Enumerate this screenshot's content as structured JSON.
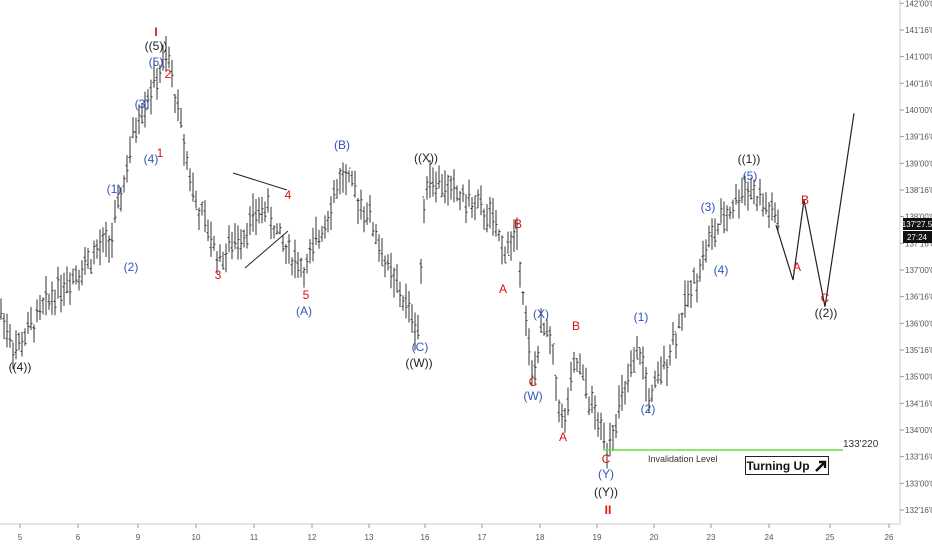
{
  "chart_data": {
    "type": "candlestick",
    "title": "",
    "xlabel": "",
    "ylabel": "",
    "x_ticks": [
      "5",
      "6",
      "9",
      "10",
      "11",
      "12",
      "13",
      "16",
      "17",
      "18",
      "19",
      "20",
      "23",
      "24",
      "25",
      "26"
    ],
    "y_ticks": [
      "132'16'0",
      "133'00'0",
      "133'16'0",
      "134'00'0",
      "134'16'0",
      "135'00'0",
      "135'16'0",
      "136'00'0",
      "136'16'0",
      "137'00'0",
      "137'16'0",
      "138'00'0",
      "138'16'0",
      "139'00'0",
      "139'16'0",
      "140'00'0",
      "140'16'0",
      "141'00'0",
      "141'16'0",
      "142'00'0"
    ],
    "ylim": [
      "132'08",
      "142'00"
    ],
    "price_badges": [
      "137'27.5",
      "27:24"
    ],
    "invalidation": {
      "label": "Invalidation Level",
      "value": "133'220",
      "color": "#66dd44"
    },
    "path": [
      [
        "day5",
        136.25
      ],
      [
        "day5",
        135.5
      ],
      [
        "day6",
        136.6
      ],
      [
        "day9",
        137.6
      ],
      [
        "day9",
        139.9
      ],
      [
        "day9",
        141.0
      ],
      [
        "day10",
        138.3
      ],
      [
        "day10",
        137.2
      ],
      [
        "day11",
        138.2
      ],
      [
        "day11",
        137.4
      ],
      [
        "day12",
        137.0
      ],
      [
        "day12",
        138.8
      ],
      [
        "day13",
        138.0
      ],
      [
        "day13",
        137.0
      ],
      [
        "day16",
        135.9
      ],
      [
        "day16",
        138.8
      ],
      [
        "day17",
        138.0
      ],
      [
        "day17",
        137.4
      ],
      [
        "day18",
        137.6
      ],
      [
        "day18",
        134.9
      ],
      [
        "day18",
        135.9
      ],
      [
        "day18",
        135.7
      ],
      [
        "day18",
        134.0
      ],
      [
        "day19",
        135.3
      ],
      [
        "day19",
        133.7
      ],
      [
        "day20",
        135.5
      ],
      [
        "day20",
        134.5
      ],
      [
        "day23",
        137.5
      ],
      [
        "day23",
        138.6
      ],
      [
        "day24",
        137.9
      ]
    ],
    "projection": [
      "137'27",
      "136'26",
      "138'10",
      "136'10",
      "139'30"
    ],
    "wave_labels": [
      {
        "text": "I",
        "color": "#dd1111"
      },
      {
        "text": "((5))",
        "color": "#222222"
      },
      {
        "text": "(5)",
        "color": "#3355bb"
      },
      {
        "text": "2",
        "color": "#dd1111"
      },
      {
        "text": "(3)",
        "color": "#3355bb"
      },
      {
        "text": "(4)",
        "color": "#3355bb"
      },
      {
        "text": "1",
        "color": "#dd1111"
      },
      {
        "text": "(1)",
        "color": "#3355bb"
      },
      {
        "text": "(2)",
        "color": "#3355bb"
      },
      {
        "text": "((4))",
        "color": "#222222"
      },
      {
        "text": "3",
        "color": "#dd1111"
      },
      {
        "text": "4",
        "color": "#dd1111"
      },
      {
        "text": "5",
        "color": "#dd1111"
      },
      {
        "text": "(A)",
        "color": "#3355bb"
      },
      {
        "text": "(B)",
        "color": "#3355bb"
      },
      {
        "text": "((X))",
        "color": "#222222"
      },
      {
        "text": "(C)",
        "color": "#3355bb"
      },
      {
        "text": "((W))",
        "color": "#222222"
      },
      {
        "text": "B",
        "color": "#dd1111"
      },
      {
        "text": "A",
        "color": "#dd1111"
      },
      {
        "text": "(X)",
        "color": "#3355bb"
      },
      {
        "text": "C",
        "color": "#dd1111"
      },
      {
        "text": "(W)",
        "color": "#3355bb"
      },
      {
        "text": "B",
        "color": "#dd1111"
      },
      {
        "text": "A",
        "color": "#dd1111"
      },
      {
        "text": "C",
        "color": "#dd1111"
      },
      {
        "text": "(Y)",
        "color": "#3355bb"
      },
      {
        "text": "((Y))",
        "color": "#222222"
      },
      {
        "text": "II",
        "color": "#dd1111"
      },
      {
        "text": "(1)",
        "color": "#3355bb"
      },
      {
        "text": "(2)",
        "color": "#3355bb"
      },
      {
        "text": "(3)",
        "color": "#3355bb"
      },
      {
        "text": "(4)",
        "color": "#3355bb"
      },
      {
        "text": "((1))",
        "color": "#222222"
      },
      {
        "text": "(5)",
        "color": "#3355bb"
      },
      {
        "text": "B",
        "color": "#dd1111"
      },
      {
        "text": "A",
        "color": "#dd1111"
      },
      {
        "text": "C",
        "color": "#dd1111"
      },
      {
        "text": "((2))",
        "color": "#222222"
      }
    ]
  },
  "turning_up": {
    "label": "Turning Up",
    "icon": "arrow-up-right-icon"
  }
}
